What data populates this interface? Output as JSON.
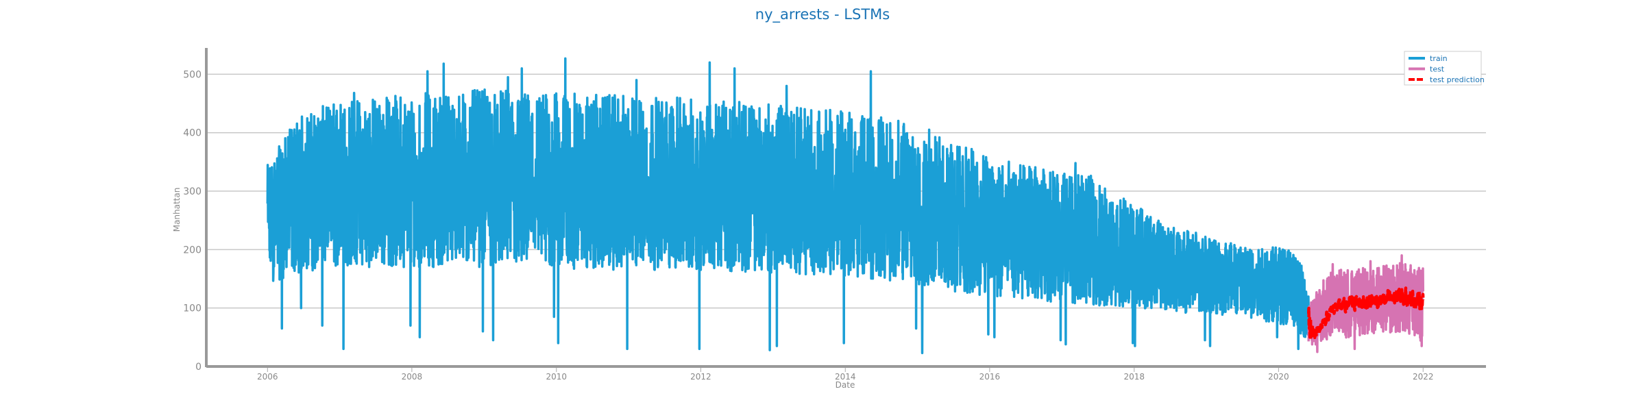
{
  "chart_data": {
    "type": "line",
    "title": "ny_arrests - LSTMs",
    "xlabel": "Date",
    "ylabel": "Manhattan",
    "xlim": [
      "2005-03-01",
      "2022-11-15"
    ],
    "ylim": [
      0,
      545
    ],
    "x_ticks": [
      "2006",
      "2008",
      "2010",
      "2012",
      "2014",
      "2016",
      "2018",
      "2020",
      "2022"
    ],
    "y_ticks": [
      0,
      100,
      200,
      300,
      400,
      500
    ],
    "grid": "horizontal",
    "legend": "top-right",
    "colors": {
      "train": "#1b9fd6",
      "test": "#d673b2",
      "test_prediction": "#ff0000",
      "title": "#1a73b5",
      "axis_text": "#888888",
      "legend_text": "#1a73b5"
    },
    "series": [
      {
        "name": "train",
        "style": "solid",
        "x_range": [
          "2006-01-01",
          "2020-06-01"
        ],
        "envelope": [
          {
            "x": "2006-01-01",
            "low": 140,
            "high": 340,
            "trend": 250
          },
          {
            "x": "2006-06-01",
            "low": 160,
            "high": 420,
            "trend": 280
          },
          {
            "x": "2007-01-01",
            "low": 170,
            "high": 450,
            "trend": 290
          },
          {
            "x": "2008-01-01",
            "low": 170,
            "high": 460,
            "trend": 290
          },
          {
            "x": "2009-01-01",
            "low": 170,
            "high": 465,
            "trend": 290
          },
          {
            "x": "2010-01-01",
            "low": 165,
            "high": 460,
            "trend": 290
          },
          {
            "x": "2011-01-01",
            "low": 165,
            "high": 455,
            "trend": 285
          },
          {
            "x": "2012-01-01",
            "low": 165,
            "high": 450,
            "trend": 285
          },
          {
            "x": "2013-01-01",
            "low": 160,
            "high": 440,
            "trend": 280
          },
          {
            "x": "2014-01-01",
            "low": 155,
            "high": 430,
            "trend": 275
          },
          {
            "x": "2014-12-01",
            "low": 140,
            "high": 410,
            "trend": 260
          },
          {
            "x": "2015-06-01",
            "low": 125,
            "high": 380,
            "trend": 240
          },
          {
            "x": "2016-06-01",
            "low": 115,
            "high": 340,
            "trend": 220
          },
          {
            "x": "2017-06-01",
            "low": 105,
            "high": 320,
            "trend": 200
          },
          {
            "x": "2018-06-01",
            "low": 95,
            "high": 240,
            "trend": 165
          },
          {
            "x": "2019-06-01",
            "low": 85,
            "high": 210,
            "trend": 145
          },
          {
            "x": "2020-03-01",
            "low": 70,
            "high": 200,
            "trend": 135
          },
          {
            "x": "2020-06-01",
            "low": 45,
            "high": 150,
            "trend": 85
          }
        ],
        "spikes": [
          {
            "x": "2006-03-15",
            "y": 65
          },
          {
            "x": "2006-06-20",
            "y": 100
          },
          {
            "x": "2006-10-05",
            "y": 70
          },
          {
            "x": "2007-01-20",
            "y": 30
          },
          {
            "x": "2007-03-15",
            "y": 468
          },
          {
            "x": "2007-12-25",
            "y": 70
          },
          {
            "x": "2008-02-10",
            "y": 50
          },
          {
            "x": "2008-03-20",
            "y": 505
          },
          {
            "x": "2008-06-10",
            "y": 518
          },
          {
            "x": "2008-12-25",
            "y": 60
          },
          {
            "x": "2009-02-15",
            "y": 45
          },
          {
            "x": "2009-05-01",
            "y": 495
          },
          {
            "x": "2009-07-10",
            "y": 510
          },
          {
            "x": "2009-12-20",
            "y": 85
          },
          {
            "x": "2010-01-10",
            "y": 40
          },
          {
            "x": "2010-02-15",
            "y": 527
          },
          {
            "x": "2010-12-25",
            "y": 30
          },
          {
            "x": "2011-02-10",
            "y": 490
          },
          {
            "x": "2011-12-25",
            "y": 30
          },
          {
            "x": "2012-02-15",
            "y": 520
          },
          {
            "x": "2012-06-20",
            "y": 510
          },
          {
            "x": "2012-12-15",
            "y": 28
          },
          {
            "x": "2013-01-20",
            "y": 35
          },
          {
            "x": "2013-03-10",
            "y": 480
          },
          {
            "x": "2013-12-25",
            "y": 40
          },
          {
            "x": "2014-05-10",
            "y": 505
          },
          {
            "x": "2014-12-25",
            "y": 65
          },
          {
            "x": "2015-01-25",
            "y": 23
          },
          {
            "x": "2015-03-01",
            "y": 405
          },
          {
            "x": "2015-12-25",
            "y": 55
          },
          {
            "x": "2016-01-25",
            "y": 50
          },
          {
            "x": "2016-12-25",
            "y": 45
          },
          {
            "x": "2017-01-20",
            "y": 38
          },
          {
            "x": "2017-03-10",
            "y": 348
          },
          {
            "x": "2017-12-25",
            "y": 40
          },
          {
            "x": "2018-01-05",
            "y": 35
          },
          {
            "x": "2018-12-25",
            "y": 45
          },
          {
            "x": "2019-01-20",
            "y": 35
          },
          {
            "x": "2019-12-25",
            "y": 50
          },
          {
            "x": "2020-04-10",
            "y": 30
          }
        ]
      },
      {
        "name": "test",
        "style": "solid",
        "x_range": [
          "2020-06-01",
          "2022-01-01"
        ],
        "envelope": [
          {
            "x": "2020-06-01",
            "low": 30,
            "high": 100,
            "trend": 65
          },
          {
            "x": "2020-09-01",
            "low": 45,
            "high": 160,
            "trend": 100
          },
          {
            "x": "2021-01-01",
            "low": 50,
            "high": 165,
            "trend": 105
          },
          {
            "x": "2021-06-01",
            "low": 55,
            "high": 170,
            "trend": 110
          },
          {
            "x": "2021-10-01",
            "low": 60,
            "high": 180,
            "trend": 120
          },
          {
            "x": "2022-01-01",
            "low": 40,
            "high": 165,
            "trend": 110
          }
        ],
        "spikes": [
          {
            "x": "2020-07-15",
            "y": 25
          },
          {
            "x": "2020-10-01",
            "y": 175
          },
          {
            "x": "2021-01-20",
            "y": 30
          },
          {
            "x": "2021-04-10",
            "y": 180
          },
          {
            "x": "2021-09-15",
            "y": 190
          },
          {
            "x": "2021-12-25",
            "y": 35
          }
        ]
      },
      {
        "name": "test prediction",
        "style": "dashed",
        "x_range": [
          "2020-06-01",
          "2022-01-01"
        ],
        "envelope": [
          {
            "x": "2020-06-01",
            "low": 40,
            "high": 155,
            "trend": 70
          },
          {
            "x": "2020-07-01",
            "low": 45,
            "high": 70,
            "trend": 55
          },
          {
            "x": "2020-10-01",
            "low": 80,
            "high": 115,
            "trend": 100
          },
          {
            "x": "2021-02-01",
            "low": 90,
            "high": 130,
            "trend": 110
          },
          {
            "x": "2021-07-01",
            "low": 95,
            "high": 140,
            "trend": 115
          },
          {
            "x": "2021-10-01",
            "low": 100,
            "high": 150,
            "trend": 120
          },
          {
            "x": "2022-01-01",
            "low": 85,
            "high": 135,
            "trend": 110
          }
        ],
        "spikes": []
      }
    ]
  }
}
